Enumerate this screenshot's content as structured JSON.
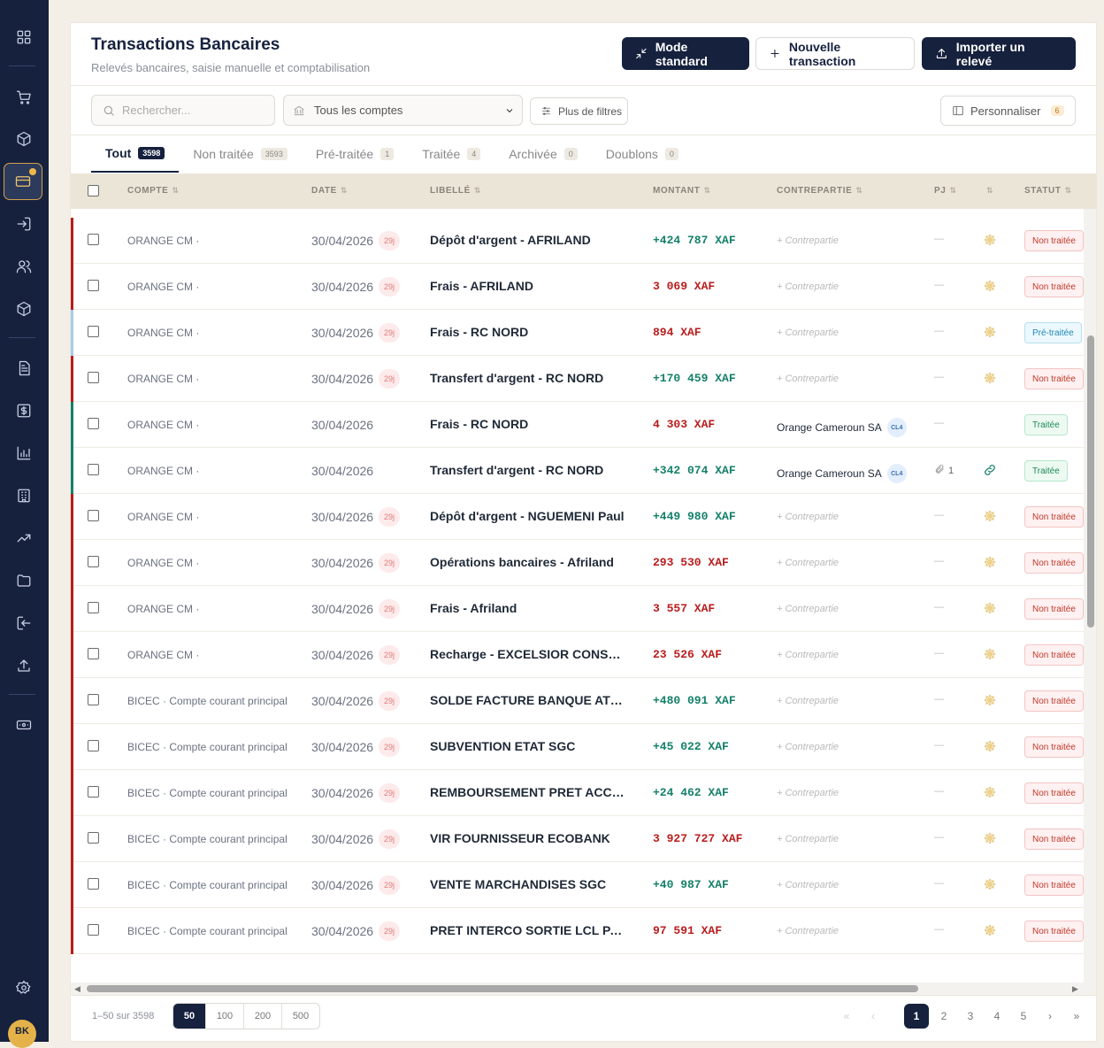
{
  "header": {
    "title": "Transactions Bancaires",
    "subtitle": "Relevés bancaires, saisie manuelle et comptabilisation",
    "btn_mode": "Mode standard",
    "btn_new": "Nouvelle transaction",
    "btn_import": "Importer un relevé"
  },
  "user": {
    "initials": "BK"
  },
  "filters": {
    "search_placeholder": "Rechercher...",
    "account_select": "Tous les comptes",
    "more_filters": "Plus de filtres",
    "customize": "Personnaliser",
    "customize_count": "6"
  },
  "tabs": [
    {
      "label": "Tout",
      "count": "3598"
    },
    {
      "label": "Non traitée",
      "count": "3593"
    },
    {
      "label": "Pré-traitée",
      "count": "1"
    },
    {
      "label": "Traitée",
      "count": "4"
    },
    {
      "label": "Archivée",
      "count": "0"
    },
    {
      "label": "Doublons",
      "count": "0"
    }
  ],
  "columns": {
    "compte": "COMPTE",
    "date": "DATE",
    "libelle": "LIBELLÉ",
    "montant": "MONTANT",
    "contrepartie": "CONTREPARTIE",
    "pj": "PJ",
    "statut": "STATUT"
  },
  "placeholders": {
    "counterpart": "+ Contrepartie",
    "empty": "—"
  },
  "colors": {
    "positive": "#14806a",
    "negative": "#b91c1c",
    "accent": "#16213e",
    "non_traitee_bar": "#b91c1c",
    "pre_traitee_bar": "#a8cde8",
    "traitee_bar": "#14806a"
  },
  "rows": [
    {
      "account": "ORANGE CM ·",
      "date": "30/04/2026",
      "age": "29j",
      "label": "Dépôt d'argent - AFRILAND",
      "amount": "+424 787 XAF",
      "sign": "pos",
      "counterpart": "",
      "pj": "—",
      "icon": "gear-icon",
      "status": "Non traitée",
      "st": "n"
    },
    {
      "account": "ORANGE CM ·",
      "date": "30/04/2026",
      "age": "29j",
      "label": "Frais - AFRILAND",
      "amount": "3 069 XAF",
      "sign": "neg",
      "counterpart": "",
      "pj": "—",
      "icon": "gear-icon",
      "status": "Non traitée",
      "st": "n"
    },
    {
      "account": "ORANGE CM ·",
      "date": "30/04/2026",
      "age": "29j",
      "label": "Frais - RC NORD",
      "amount": "894 XAF",
      "sign": "neg",
      "counterpart": "",
      "pj": "—",
      "icon": "gear-icon",
      "status": "Pré-traitée",
      "st": "p"
    },
    {
      "account": "ORANGE CM ·",
      "date": "30/04/2026",
      "age": "29j",
      "label": "Transfert d'argent - RC NORD",
      "amount": "+170 459 XAF",
      "sign": "pos",
      "counterpart": "",
      "pj": "—",
      "icon": "gear-icon",
      "status": "Non traitée",
      "st": "n"
    },
    {
      "account": "ORANGE CM ·",
      "date": "30/04/2026",
      "age": "",
      "label": "Frais - RC NORD",
      "amount": "4 303 XAF",
      "sign": "neg",
      "counterpart": "Orange Cameroun SA",
      "badge": "CL4",
      "pj": "—",
      "icon": "",
      "status": "Traitée",
      "st": "t"
    },
    {
      "account": "ORANGE CM ·",
      "date": "30/04/2026",
      "age": "",
      "label": "Transfert d'argent - RC NORD",
      "amount": "+342 074 XAF",
      "sign": "pos",
      "counterpart": "Orange Cameroun SA",
      "badge": "CL4",
      "pj": "1",
      "icon": "link-icon",
      "status": "Traitée",
      "st": "t"
    },
    {
      "account": "ORANGE CM ·",
      "date": "30/04/2026",
      "age": "29j",
      "label": "Dépôt d'argent - NGUEMENI Paul",
      "amount": "+449 980 XAF",
      "sign": "pos",
      "counterpart": "",
      "pj": "—",
      "icon": "gear-icon",
      "status": "Non traitée",
      "st": "n"
    },
    {
      "account": "ORANGE CM ·",
      "date": "30/04/2026",
      "age": "29j",
      "label": "Opérations bancaires - Afriland",
      "amount": "293 530 XAF",
      "sign": "neg",
      "counterpart": "",
      "pj": "—",
      "icon": "gear-icon",
      "status": "Non traitée",
      "st": "n"
    },
    {
      "account": "ORANGE CM ·",
      "date": "30/04/2026",
      "age": "29j",
      "label": "Frais - Afriland",
      "amount": "3 557 XAF",
      "sign": "neg",
      "counterpart": "",
      "pj": "—",
      "icon": "gear-icon",
      "status": "Non traitée",
      "st": "n"
    },
    {
      "account": "ORANGE CM ·",
      "date": "30/04/2026",
      "age": "29j",
      "label": "Recharge - EXCELSIOR CONSULT...",
      "amount": "23 526 XAF",
      "sign": "neg",
      "counterpart": "",
      "pj": "—",
      "icon": "gear-icon",
      "status": "Non traitée",
      "st": "n"
    },
    {
      "account": "BICEC · Compte courant principal",
      "date": "30/04/2026",
      "age": "29j",
      "label": "SOLDE FACTURE BANQUE ATLA...",
      "amount": "+480 091 XAF",
      "sign": "pos",
      "counterpart": "",
      "pj": "—",
      "icon": "gear-icon",
      "status": "Non traitée",
      "st": "n"
    },
    {
      "account": "BICEC · Compte courant principal",
      "date": "30/04/2026",
      "age": "29j",
      "label": "SUBVENTION ETAT SGC",
      "amount": "+45 022 XAF",
      "sign": "pos",
      "counterpart": "",
      "pj": "—",
      "icon": "gear-icon",
      "status": "Non traitée",
      "st": "n"
    },
    {
      "account": "BICEC · Compte courant principal",
      "date": "30/04/2026",
      "age": "29j",
      "label": "REMBOURSEMENT PRET ACCOR...",
      "amount": "+24 462 XAF",
      "sign": "pos",
      "counterpart": "",
      "pj": "—",
      "icon": "gear-icon",
      "status": "Non traitée",
      "st": "n"
    },
    {
      "account": "BICEC · Compte courant principal",
      "date": "30/04/2026",
      "age": "29j",
      "label": "VIR FOURNISSEUR ECOBANK",
      "amount": "3 927 727 XAF",
      "sign": "neg",
      "counterpart": "",
      "pj": "—",
      "icon": "gear-icon",
      "status": "Non traitée",
      "st": "n"
    },
    {
      "account": "BICEC · Compte courant principal",
      "date": "30/04/2026",
      "age": "29j",
      "label": "VENTE MARCHANDISES SGC",
      "amount": "+40 987 XAF",
      "sign": "pos",
      "counterpart": "",
      "pj": "—",
      "icon": "gear-icon",
      "status": "Non traitée",
      "st": "n"
    },
    {
      "account": "BICEC · Compte courant principal",
      "date": "30/04/2026",
      "age": "29j",
      "label": "PRET INTERCO SORTIE LCL PARIS",
      "amount": "97 591 XAF",
      "sign": "neg",
      "counterpart": "",
      "pj": "—",
      "icon": "gear-icon",
      "status": "Non traitée",
      "st": "n"
    }
  ],
  "pagination": {
    "range": "1–50 sur 3598",
    "sizes": [
      "50",
      "100",
      "200",
      "500"
    ],
    "pages": [
      "1",
      "2",
      "3",
      "4",
      "5"
    ],
    "first": "«",
    "prev": "‹",
    "next": "›",
    "last": "»"
  }
}
